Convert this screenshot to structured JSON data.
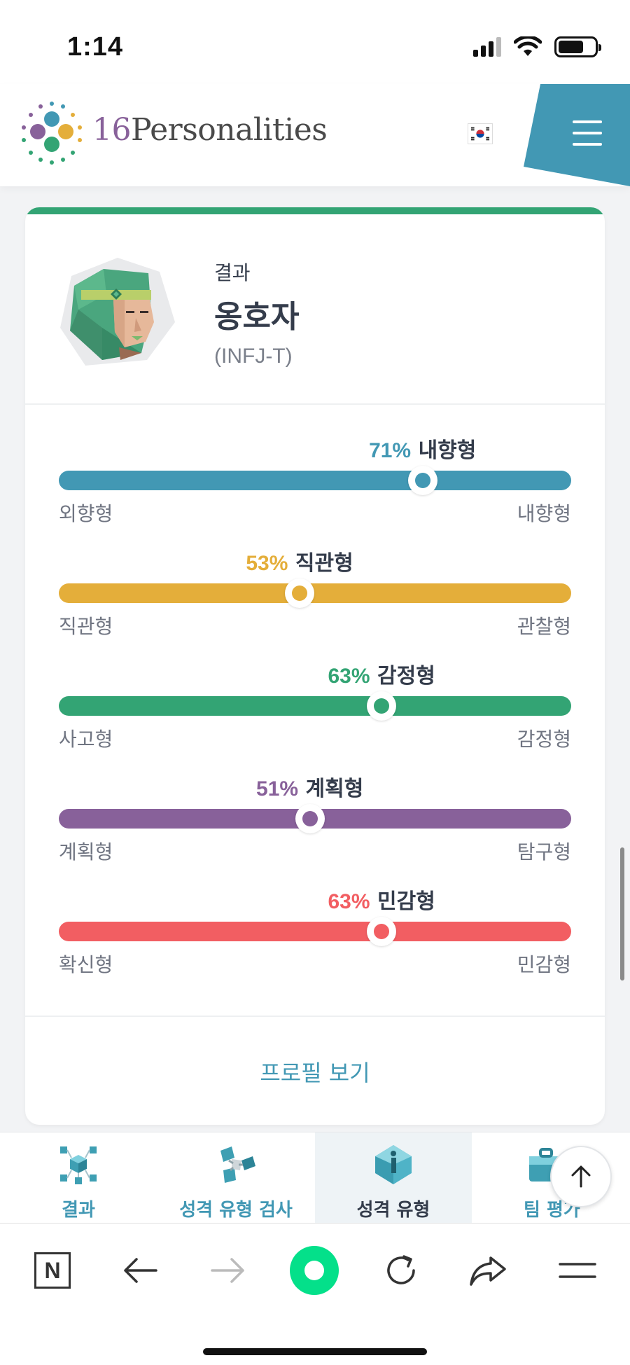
{
  "status_bar": {
    "time": "1:14"
  },
  "header": {
    "brand_number": "16",
    "brand_name": "Personalities",
    "colors": {
      "menu_tab": "#4298b4"
    }
  },
  "result": {
    "label": "결과",
    "type_name": "옹호자",
    "type_code": "(INFJ-T)"
  },
  "traits": [
    {
      "percent": "71%",
      "trait": "내향형",
      "left": "외향형",
      "right": "내향형",
      "position": 0.71,
      "color": "#4298b4"
    },
    {
      "percent": "53%",
      "trait": "직관형",
      "left": "직관형",
      "right": "관찰형",
      "position": 0.47,
      "color": "#e4ae3a"
    },
    {
      "percent": "63%",
      "trait": "감정형",
      "left": "사고형",
      "right": "감정형",
      "position": 0.63,
      "color": "#33a474"
    },
    {
      "percent": "51%",
      "trait": "계획형",
      "left": "계획형",
      "right": "탐구형",
      "position": 0.49,
      "color": "#88619a"
    },
    {
      "percent": "63%",
      "trait": "민감형",
      "left": "확신형",
      "right": "민감형",
      "position": 0.63,
      "color": "#f25e62"
    }
  ],
  "profile_link": "프로필 보기",
  "bottom_tabs": [
    {
      "label": "결과",
      "icon": "results-icon",
      "active": false
    },
    {
      "label": "성격 유형 검사",
      "icon": "personality-test-icon",
      "active": false
    },
    {
      "label": "성격 유형",
      "icon": "personality-types-icon",
      "active": true
    },
    {
      "label": "팀 평가",
      "icon": "team-assessment-icon",
      "active": false
    }
  ],
  "browser": {
    "n_label": "N"
  }
}
